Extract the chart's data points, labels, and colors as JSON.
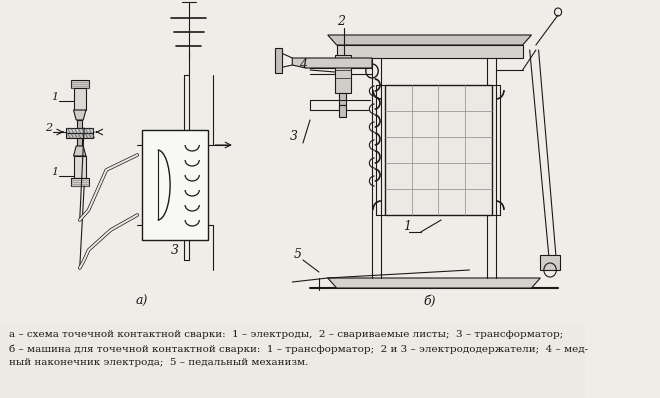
{
  "background_color": "#f0ede8",
  "fig_width": 6.6,
  "fig_height": 3.98,
  "dpi": 100,
  "caption_line1": "а – схема точечной контактной сварки:  1 – электроды,  2 – свариваемые листы;  3 – трансформатор;",
  "caption_line2": "б – машина для точечной контактной сварки:  1 – трансформатор;  2 и 3 – электрододержатели;  4 – мед-",
  "caption_line3": "ный наконечник электрода;  5 – педальный механизм.",
  "label_a": "а)",
  "label_b": "б)",
  "font_size_caption": 7.5,
  "font_size_label": 9,
  "text_color": "#1a1a1a",
  "line_color": "#1a1a1a",
  "line_color_mid": "#444444",
  "line_color_light": "#888888"
}
